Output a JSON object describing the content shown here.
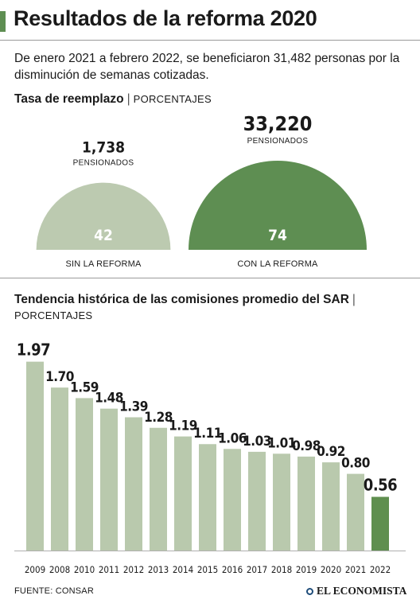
{
  "header": {
    "title": "Resultados de la reforma 2020",
    "subtitle": "De enero 2021 a febrero 2022, se beneficiaron 31,482 personas por la disminución de semanas cotizadas."
  },
  "section1": {
    "title": "Tasa de reemplazo",
    "separator": "|",
    "unit": "PORCENTAJES"
  },
  "section2": {
    "title": "Tendencia histórica de las comisiones promedio del SAR",
    "separator": "|",
    "unit": "PORCENTAJES"
  },
  "colors": {
    "light_green": "#bccab0",
    "dark_green": "#5e8e52",
    "bar_light": "#b9c9ad",
    "bar_highlight": "#5f8f4f",
    "accent": "#5e8e52"
  },
  "chart_data": [
    {
      "type": "semicircle",
      "series": [
        {
          "label": "SIN LA REFORMA",
          "value": 42,
          "pensioners": "1,738",
          "pensioners_label": "PENSIONADOS"
        },
        {
          "label": "CON LA REFORMA",
          "value": 74,
          "pensioners": "33,220",
          "pensioners_label": "PENSIONADOS"
        }
      ]
    },
    {
      "type": "bar",
      "categories": [
        "2009",
        "2008",
        "2010",
        "2011",
        "2012",
        "2013",
        "2014",
        "2015",
        "2016",
        "2017",
        "2018",
        "2019",
        "2020",
        "2021",
        "2022"
      ],
      "values": [
        1.97,
        1.7,
        1.59,
        1.48,
        1.39,
        1.28,
        1.19,
        1.11,
        1.06,
        1.03,
        1.01,
        0.98,
        0.92,
        0.8,
        0.56
      ],
      "value_labels": [
        "1.97",
        "1.70",
        "1.59",
        "1.48",
        "1.39",
        "1.28",
        "1.19",
        "1.11",
        "1.06",
        "1.03",
        "1.01",
        "0.98",
        "0.92",
        "0.80",
        "0.56"
      ],
      "highlight": "2022",
      "ylim": [
        0,
        2.0
      ],
      "grid": false
    }
  ],
  "footer": {
    "source": "FUENTE: CONSAR",
    "brand": "EL ECONOMISTA"
  }
}
